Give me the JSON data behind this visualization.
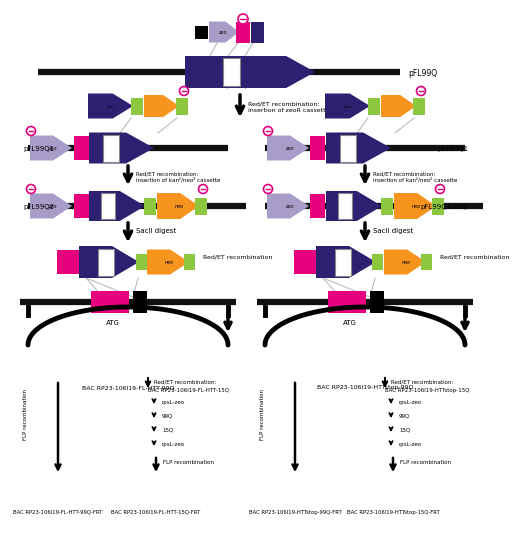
{
  "bg_color": "#ffffff",
  "colors": {
    "dark_purple": "#2d2070",
    "light_purple": "#a89cc8",
    "magenta": "#e6007e",
    "orange": "#f7941d",
    "green": "#8dc63f",
    "black": "#000000",
    "dark_line": "#1a1a1a",
    "gray_conn": "#bbbbbb"
  },
  "labels": {
    "pFL99Q": "pFL99Q",
    "pFL99Q1": "pFL99Q1",
    "pFL99Q2": "pFL99Q2",
    "pFL99Q2_stop": "pFL99Q2-stop",
    "step1": "Red/ET recombination:\ninsertion of zeoR cassette",
    "step2": "Red/ET recombination:\ninsertion of kan²/neo² cassette",
    "SacII": "SacII digest",
    "RedET": "Red/ET recombination",
    "ATG": "ATG",
    "BAC_L1": "BAC RP23-106l19-FL-HTT-99Q",
    "BAC_R1": "BAC RP23-106l19-HTTstop-99Q",
    "BAC_L2": "BAC RP23-106l19-FL-HTT-15Q",
    "BAC_R2": "BAC RP23-106l19-HTTstop-15Q",
    "RedET2": "Red/ET recombination:",
    "rpsL_zeo": "rpsL-zeo",
    "s99Q": "99Q",
    "s15Q": "15Q",
    "FLP": "FLP recombination",
    "final_LL": "BAC RP23-106l19-FL-HTT-99Q-FRT",
    "final_LR": "BAC RP23-106l19-FL-HTT-15Q-FRT",
    "final_RL": "BAC RP23-106l19-HTTstop-99Q-FRT",
    "final_RR": "BAC RP23-106l19-HTTstop-15Q-FRT"
  }
}
